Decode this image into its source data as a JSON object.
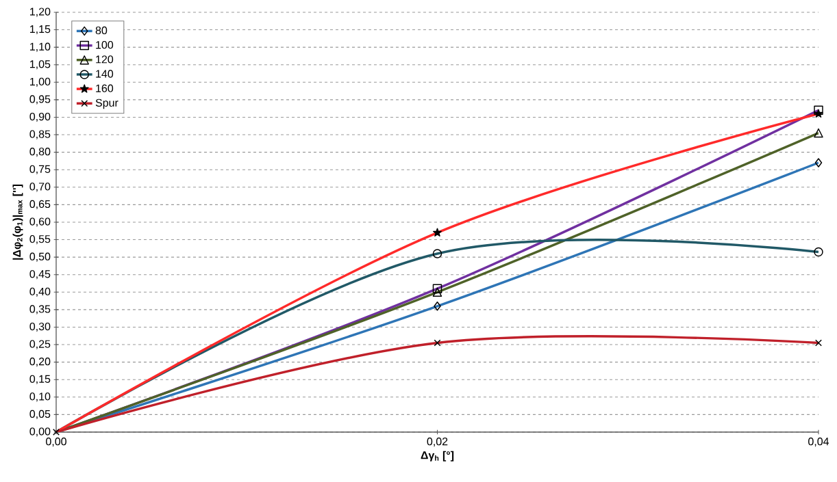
{
  "chart_data": {
    "type": "line",
    "xlabel": "Δγ$_{h}$ [°]",
    "ylabel": "|Δφ$_{2}$(φ$_{1}$)|$_{max}$ ['']",
    "x": [
      0,
      0.02,
      0.04
    ],
    "series": [
      {
        "name": "80",
        "color": "#2e75b6",
        "marker": "diamond",
        "values": [
          0,
          0.36,
          0.77
        ]
      },
      {
        "name": "100",
        "color": "#7030a0",
        "marker": "square",
        "values": [
          0,
          0.41,
          0.92
        ]
      },
      {
        "name": "120",
        "color": "#4f6228",
        "marker": "triangle",
        "values": [
          0,
          0.4,
          0.855
        ]
      },
      {
        "name": "140",
        "color": "#215967",
        "marker": "circle",
        "values": [
          0,
          0.51,
          0.515
        ]
      },
      {
        "name": "160",
        "color": "#ff2a2a",
        "marker": "star",
        "values": [
          0,
          0.57,
          0.91
        ]
      },
      {
        "name": "Spur",
        "color": "#c0202a",
        "marker": "cross",
        "values": [
          0,
          0.255,
          0.255
        ]
      }
    ],
    "xlim": [
      0,
      0.04
    ],
    "xticks": [
      {
        "value": 0,
        "label": "0,00"
      },
      {
        "value": 0.02,
        "label": "0,02"
      },
      {
        "value": 0.04,
        "label": "0,04"
      }
    ],
    "ylim": [
      0,
      1.2
    ],
    "yticks": [
      {
        "value": 0,
        "label": "0,00"
      },
      {
        "value": 0.05,
        "label": "0,05"
      },
      {
        "value": 0.1,
        "label": "0,10"
      },
      {
        "value": 0.15,
        "label": "0,15"
      },
      {
        "value": 0.2,
        "label": "0,20"
      },
      {
        "value": 0.25,
        "label": "0,25"
      },
      {
        "value": 0.3,
        "label": "0,30"
      },
      {
        "value": 0.35,
        "label": "0,35"
      },
      {
        "value": 0.4,
        "label": "0,40"
      },
      {
        "value": 0.45,
        "label": "0,45"
      },
      {
        "value": 0.5,
        "label": "0,50"
      },
      {
        "value": 0.55,
        "label": "0,55"
      },
      {
        "value": 0.6,
        "label": "0,60"
      },
      {
        "value": 0.65,
        "label": "0,65"
      },
      {
        "value": 0.7,
        "label": "0,70"
      },
      {
        "value": 0.75,
        "label": "0,75"
      },
      {
        "value": 0.8,
        "label": "0,80"
      },
      {
        "value": 0.85,
        "label": "0,85"
      },
      {
        "value": 0.9,
        "label": "0,90"
      },
      {
        "value": 0.95,
        "label": "0,95"
      },
      {
        "value": 1.0,
        "label": "1,00"
      },
      {
        "value": 1.05,
        "label": "1,05"
      },
      {
        "value": 1.1,
        "label": "1,10"
      },
      {
        "value": 1.15,
        "label": "1,15"
      },
      {
        "value": 1.2,
        "label": "1,20"
      }
    ],
    "grid": "y",
    "legend": "top left",
    "line_style": "solid"
  }
}
